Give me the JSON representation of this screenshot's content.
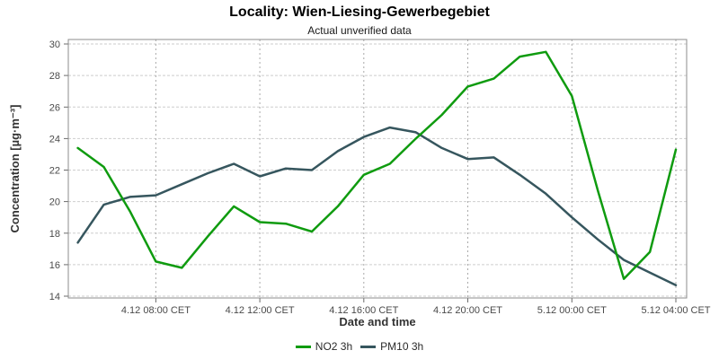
{
  "chart_data": {
    "type": "line",
    "title": "Locality: Wien-Liesing-Gewerbegebiet",
    "subtitle": "Actual unverified data",
    "xlabel": "Date and time",
    "ylabel": "Concentration [µg·m⁻³]",
    "ylim": [
      14,
      30
    ],
    "y_ticks": [
      14,
      16,
      18,
      20,
      22,
      24,
      26,
      28,
      30
    ],
    "grid": "dashed",
    "legend_position": "bottom",
    "x": [
      "4.12 05:00",
      "4.12 06:00",
      "4.12 07:00",
      "4.12 08:00",
      "4.12 09:00",
      "4.12 10:00",
      "4.12 11:00",
      "4.12 12:00",
      "4.12 13:00",
      "4.12 14:00",
      "4.12 15:00",
      "4.12 16:00",
      "4.12 17:00",
      "4.12 18:00",
      "4.12 19:00",
      "4.12 20:00",
      "4.12 21:00",
      "4.12 22:00",
      "4.12 23:00",
      "5.12 00:00",
      "5.12 01:00",
      "5.12 02:00",
      "5.12 03:00",
      "5.12 04:00"
    ],
    "x_tick_labels": [
      "4.12 08:00 CET",
      "4.12 12:00 CET",
      "4.12 16:00 CET",
      "4.12 20:00 CET",
      "5.12 00:00 CET",
      "5.12 04:00 CET"
    ],
    "x_tick_indices": [
      3,
      7,
      11,
      15,
      19,
      23
    ],
    "series": [
      {
        "name": "NO2 3h",
        "color": "#0f9b0f",
        "values": [
          23.4,
          22.2,
          19.4,
          16.2,
          15.8,
          17.8,
          19.7,
          18.7,
          18.6,
          18.1,
          19.7,
          21.7,
          22.4,
          24.0,
          25.5,
          27.3,
          27.8,
          29.2,
          29.5,
          26.7,
          20.7,
          15.1,
          16.8,
          23.3
        ]
      },
      {
        "name": "PM10 3h",
        "color": "#36565e",
        "values": [
          17.4,
          19.8,
          20.3,
          20.4,
          21.1,
          21.8,
          22.4,
          21.6,
          22.1,
          22.0,
          23.2,
          24.1,
          24.7,
          24.4,
          23.4,
          22.7,
          22.8,
          21.7,
          20.5,
          19.0,
          17.6,
          16.3,
          15.5,
          14.7
        ]
      }
    ]
  }
}
